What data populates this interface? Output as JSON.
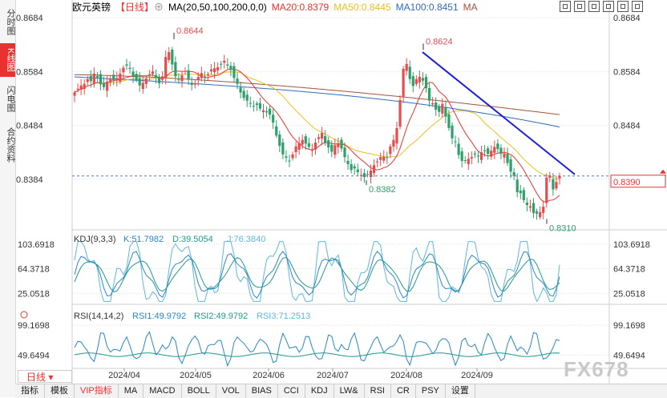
{
  "sidebar": {
    "tabs": [
      {
        "label": "分时图",
        "active": false
      },
      {
        "label": "K线图",
        "active": true
      },
      {
        "label": "闪电图",
        "active": false
      },
      {
        "label": "合约资料",
        "active": false
      }
    ]
  },
  "header": {
    "symbol": "欧元英镑",
    "period_tag": "【日线】",
    "settings_glyph": "⊕",
    "ma_label": "MA(20,50,100,200,0,0)",
    "ma20": "MA20:0.8379",
    "ma50": "MA50:0.8445",
    "ma100": "MA100:0.8451",
    "ma200": "MA"
  },
  "colors": {
    "up": "#e74c4c",
    "down": "#2e9f6b",
    "ma20": "#e8332a",
    "ma50": "#e8c020",
    "ma100": "#2f6bbf",
    "ma200": "#a0523c",
    "trend": "#1c1fd6",
    "kdj_k": "#2a86c8",
    "kdj_d": "#1f9a8c",
    "kdj_j": "#5db7e0",
    "grid": "#e0e0e0",
    "price_line": "#4a7fc0",
    "accent_red": "#e8322f"
  },
  "chart_data": [
    {
      "type": "candlestick",
      "title": "欧元英镑 日线",
      "x_axis": [
        "2024/04",
        "2024/05",
        "2024/06",
        "2024/07",
        "2024/08",
        "2024/09"
      ],
      "y_ticks": [
        0.8684,
        0.8584,
        0.8484,
        0.8384
      ],
      "ylim": [
        0.829,
        0.869
      ],
      "current_price": 0.839,
      "annotations": [
        {
          "label": "0.8644",
          "value": 0.8644
        },
        {
          "label": "0.8624",
          "value": 0.8624
        },
        {
          "label": "0.8382",
          "value": 0.8382
        },
        {
          "label": "0.8310",
          "value": 0.831
        }
      ],
      "closes": [
        0.8545,
        0.8552,
        0.8558,
        0.8561,
        0.857,
        0.8566,
        0.858,
        0.8573,
        0.856,
        0.8555,
        0.8565,
        0.8571,
        0.8568,
        0.8572,
        0.858,
        0.8591,
        0.8595,
        0.8589,
        0.8574,
        0.8568,
        0.8558,
        0.8563,
        0.8571,
        0.8579,
        0.8584,
        0.8573,
        0.8562,
        0.8575,
        0.8611,
        0.862,
        0.8597,
        0.8575,
        0.8569,
        0.8577,
        0.8585,
        0.857,
        0.8559,
        0.8562,
        0.8574,
        0.8581,
        0.8573,
        0.8579,
        0.8588,
        0.859,
        0.8592,
        0.8598,
        0.8604,
        0.8595,
        0.8587,
        0.8572,
        0.8561,
        0.8545,
        0.8535,
        0.853,
        0.8525,
        0.8519,
        0.8522,
        0.8515,
        0.8512,
        0.8508,
        0.8504,
        0.8489,
        0.8465,
        0.8446,
        0.843,
        0.8424,
        0.8418,
        0.843,
        0.8445,
        0.8451,
        0.8457,
        0.845,
        0.8444,
        0.8438,
        0.8452,
        0.8462,
        0.847,
        0.8452,
        0.8443,
        0.8435,
        0.8447,
        0.8451,
        0.8441,
        0.8425,
        0.8412,
        0.8401,
        0.8404,
        0.8397,
        0.8392,
        0.8388,
        0.8393,
        0.84,
        0.841,
        0.8417,
        0.8425,
        0.8426,
        0.8424,
        0.8445,
        0.8457,
        0.8479,
        0.8531,
        0.8589,
        0.8598,
        0.857,
        0.8557,
        0.857,
        0.8574,
        0.8567,
        0.8553,
        0.853,
        0.8525,
        0.8513,
        0.8509,
        0.8524,
        0.85,
        0.8479,
        0.846,
        0.8453,
        0.8429,
        0.8418,
        0.8419,
        0.8422,
        0.8425,
        0.843,
        0.8426,
        0.8434,
        0.8436,
        0.8431,
        0.8437,
        0.8444,
        0.844,
        0.8431,
        0.8432,
        0.8414,
        0.8398,
        0.839,
        0.836,
        0.8358,
        0.8345,
        0.8336,
        0.8334,
        0.8321,
        0.832,
        0.8323,
        0.8333,
        0.8387,
        0.8391,
        0.8365,
        0.8379,
        0.839
      ],
      "series": [
        {
          "name": "MA20",
          "value": 0.8379
        },
        {
          "name": "MA50",
          "value": 0.8445
        },
        {
          "name": "MA100",
          "value": 0.8451
        },
        {
          "name": "MA"
        }
      ]
    },
    {
      "type": "line",
      "title": "KDJ(9,3,3)",
      "y_ticks": [
        103.6918,
        64.3718,
        25.0518
      ],
      "legend": {
        "label": "KDJ(9,3,3)",
        "k": "K:51.7982",
        "d": "D:39.5054",
        "j": "J:76.3840"
      },
      "series": [
        {
          "name": "K",
          "last": 51.7982
        },
        {
          "name": "D",
          "last": 39.5054
        },
        {
          "name": "J",
          "last": 76.384
        }
      ]
    },
    {
      "type": "line",
      "title": "RSI(14,14,2)",
      "y_ticks": [
        99.1698,
        49.6494
      ],
      "legend": {
        "label": "RSI(14,14,2)",
        "rsi1": "RSI1:49.9792",
        "rsi2": "RSI2:49.9792",
        "rsi3": "RSI3:71.2513"
      },
      "series": [
        {
          "name": "RSI1",
          "last": 49.9792
        },
        {
          "name": "RSI2",
          "last": 49.9792
        },
        {
          "name": "RSI3",
          "last": 71.2513
        }
      ]
    }
  ],
  "bottom": {
    "period_button": "日线",
    "tabs": [
      "指标",
      "模板",
      "VIP指标",
      "MA",
      "MACD",
      "BOLL",
      "VOL",
      "BIAS",
      "CCI",
      "KDJ",
      "LW&",
      "RSI",
      "CR",
      "PSY",
      "设置"
    ],
    "active": "VIP指标"
  },
  "watermark": "FX678"
}
